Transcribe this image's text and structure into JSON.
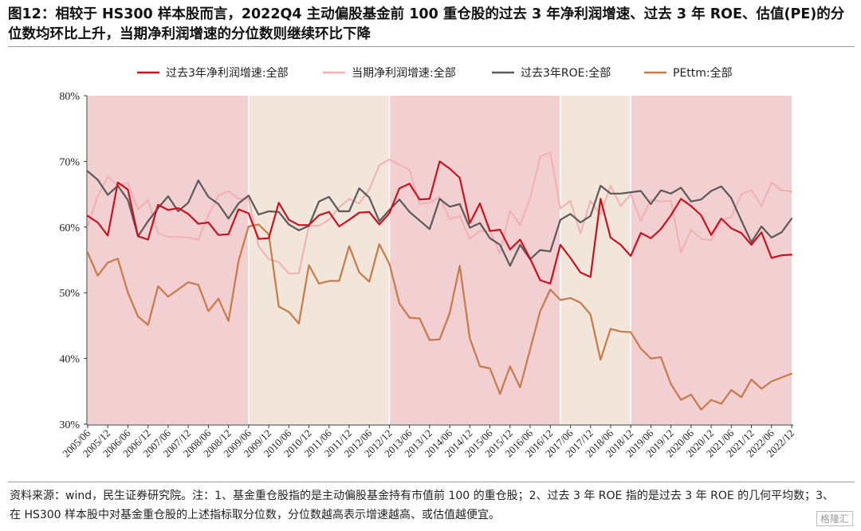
{
  "title": "图12：相较于 HS300 样本股而言，2022Q4 主动偏股基金前 100 重仓股的过去 3 年净利润增速、过去 3 年 ROE、估值(PE)的分位数均环比上升，当期净利润增速的分位数则继续环比下降",
  "source_note": "资料来源：wind，民生证券研究院。注：1、基金重仓股指的是主动偏股基金持有市值前 100 的重仓股；2、过去 3 年 ROE 指的是过去 3 年 ROE 的几何平均数；3、在 HS300 样本股中对基金重仓股的上述指标取分位数，分位数越高表示增速越高、或估值越便宜。",
  "watermark": "格隆汇",
  "chart_data": {
    "type": "line",
    "x": [
      "2005/06",
      "2005/09",
      "2005/12",
      "2006/03",
      "2006/06",
      "2006/09",
      "2006/12",
      "2007/03",
      "2007/06",
      "2007/09",
      "2007/12",
      "2008/03",
      "2008/06",
      "2008/09",
      "2008/12",
      "2009/03",
      "2009/06",
      "2009/09",
      "2009/12",
      "2010/03",
      "2010/06",
      "2010/09",
      "2010/12",
      "2011/03",
      "2011/06",
      "2011/09",
      "2011/12",
      "2012/03",
      "2012/06",
      "2012/09",
      "2012/12",
      "2013/03",
      "2013/06",
      "2013/09",
      "2013/12",
      "2014/03",
      "2014/06",
      "2014/09",
      "2014/12",
      "2015/03",
      "2015/06",
      "2015/09",
      "2015/12",
      "2016/03",
      "2016/06",
      "2016/09",
      "2016/12",
      "2017/03",
      "2017/06",
      "2017/09",
      "2017/12",
      "2018/03",
      "2018/06",
      "2018/09",
      "2018/12",
      "2019/03",
      "2019/06",
      "2019/09",
      "2019/12",
      "2020/03",
      "2020/06",
      "2020/09",
      "2020/12",
      "2021/03",
      "2021/06",
      "2021/09",
      "2021/12",
      "2022/03",
      "2022/06",
      "2022/09",
      "2022/12"
    ],
    "xtick_labels": [
      "2005/06",
      "2005/12",
      "2006/06",
      "2006/12",
      "2007/06",
      "2007/12",
      "2008/06",
      "2008/12",
      "2009/06",
      "2009/12",
      "2010/06",
      "2010/12",
      "2011/06",
      "2011/12",
      "2012/06",
      "2012/12",
      "2013/06",
      "2013/12",
      "2014/06",
      "2014/12",
      "2015/06",
      "2015/12",
      "2016/06",
      "2016/12",
      "2017/06",
      "2017/12",
      "2018/06",
      "2018/12",
      "2019/06",
      "2019/12",
      "2020/06",
      "2020/12",
      "2021/06",
      "2021/12",
      "2022/06",
      "2022/12"
    ],
    "ylim": [
      0.3,
      0.8
    ],
    "yticks": [
      "30%",
      "40%",
      "50%",
      "60%",
      "70%",
      "80%"
    ],
    "legend_position": "top",
    "shaded_regions": [
      {
        "start": "2005/06",
        "end": "2009/06",
        "color": "#f2cfd1"
      },
      {
        "start": "2009/06",
        "end": "2012/12",
        "color": "#f2e5da"
      },
      {
        "start": "2012/12",
        "end": "2017/03",
        "color": "#f2cfd1"
      },
      {
        "start": "2017/03",
        "end": "2018/12",
        "color": "#f2e5da"
      },
      {
        "start": "2018/12",
        "end": "2022/12",
        "color": "#f2cfd1"
      }
    ],
    "series": [
      {
        "name": "过去3年净利润增速:全部",
        "color": "#c8101e",
        "width": 2.2,
        "values": [
          0.617,
          0.607,
          0.587,
          0.668,
          0.657,
          0.586,
          0.581,
          0.634,
          0.626,
          0.629,
          0.62,
          0.605,
          0.607,
          0.588,
          0.589,
          0.627,
          0.621,
          0.582,
          0.583,
          0.637,
          0.611,
          0.603,
          0.603,
          0.618,
          0.623,
          0.601,
          0.611,
          0.622,
          0.623,
          0.604,
          0.621,
          0.659,
          0.666,
          0.642,
          0.643,
          0.7,
          0.689,
          0.675,
          0.606,
          0.636,
          0.594,
          0.596,
          0.566,
          0.581,
          0.552,
          0.519,
          0.514,
          0.573,
          0.553,
          0.531,
          0.524,
          0.643,
          0.584,
          0.573,
          0.556,
          0.591,
          0.583,
          0.597,
          0.618,
          0.643,
          0.632,
          0.618,
          0.588,
          0.613,
          0.598,
          0.591,
          0.573,
          0.592,
          0.553,
          0.557,
          0.558
        ]
      },
      {
        "name": "当期净利润增速:全部",
        "color": "#f0b0b4",
        "width": 2,
        "values": [
          0.601,
          0.647,
          0.677,
          0.663,
          0.667,
          0.627,
          0.641,
          0.591,
          0.585,
          0.585,
          0.584,
          0.581,
          0.618,
          0.648,
          0.655,
          0.643,
          0.643,
          0.571,
          0.551,
          0.547,
          0.529,
          0.53,
          0.602,
          0.602,
          0.611,
          0.63,
          0.643,
          0.636,
          0.657,
          0.694,
          0.703,
          0.695,
          0.687,
          0.635,
          0.637,
          0.646,
          0.612,
          0.617,
          0.582,
          0.594,
          0.594,
          0.56,
          0.625,
          0.603,
          0.644,
          0.707,
          0.714,
          0.628,
          0.64,
          0.59,
          0.64,
          0.619,
          0.663,
          0.632,
          0.65,
          0.609,
          0.642,
          0.639,
          0.64,
          0.561,
          0.596,
          0.582,
          0.58,
          0.611,
          0.615,
          0.65,
          0.656,
          0.632,
          0.668,
          0.656,
          0.654
        ]
      },
      {
        "name": "过去3年ROE:全部",
        "color": "#5a5a5a",
        "width": 2.2,
        "values": [
          0.685,
          0.672,
          0.649,
          0.663,
          0.641,
          0.586,
          0.609,
          0.629,
          0.647,
          0.624,
          0.637,
          0.671,
          0.646,
          0.635,
          0.613,
          0.636,
          0.648,
          0.619,
          0.624,
          0.623,
          0.604,
          0.595,
          0.602,
          0.639,
          0.646,
          0.624,
          0.624,
          0.659,
          0.645,
          0.609,
          0.626,
          0.642,
          0.623,
          0.61,
          0.597,
          0.643,
          0.631,
          0.635,
          0.599,
          0.606,
          0.583,
          0.573,
          0.541,
          0.573,
          0.551,
          0.565,
          0.563,
          0.611,
          0.62,
          0.607,
          0.617,
          0.663,
          0.651,
          0.651,
          0.653,
          0.655,
          0.635,
          0.656,
          0.651,
          0.66,
          0.639,
          0.642,
          0.655,
          0.662,
          0.644,
          0.61,
          0.577,
          0.601,
          0.584,
          0.592,
          0.613
        ]
      },
      {
        "name": "PEttm:全部",
        "color": "#c77a4a",
        "width": 2.2,
        "values": [
          0.561,
          0.526,
          0.546,
          0.552,
          0.5,
          0.464,
          0.451,
          0.51,
          0.494,
          0.505,
          0.516,
          0.512,
          0.472,
          0.491,
          0.457,
          0.548,
          0.601,
          0.604,
          0.589,
          0.479,
          0.471,
          0.453,
          0.542,
          0.514,
          0.518,
          0.518,
          0.571,
          0.531,
          0.517,
          0.574,
          0.544,
          0.484,
          0.462,
          0.461,
          0.428,
          0.429,
          0.469,
          0.541,
          0.431,
          0.388,
          0.385,
          0.346,
          0.388,
          0.356,
          0.414,
          0.472,
          0.505,
          0.489,
          0.492,
          0.485,
          0.467,
          0.398,
          0.445,
          0.441,
          0.44,
          0.415,
          0.4,
          0.402,
          0.361,
          0.337,
          0.345,
          0.322,
          0.337,
          0.331,
          0.352,
          0.341,
          0.368,
          0.354,
          0.365,
          0.371,
          0.377
        ]
      }
    ]
  }
}
